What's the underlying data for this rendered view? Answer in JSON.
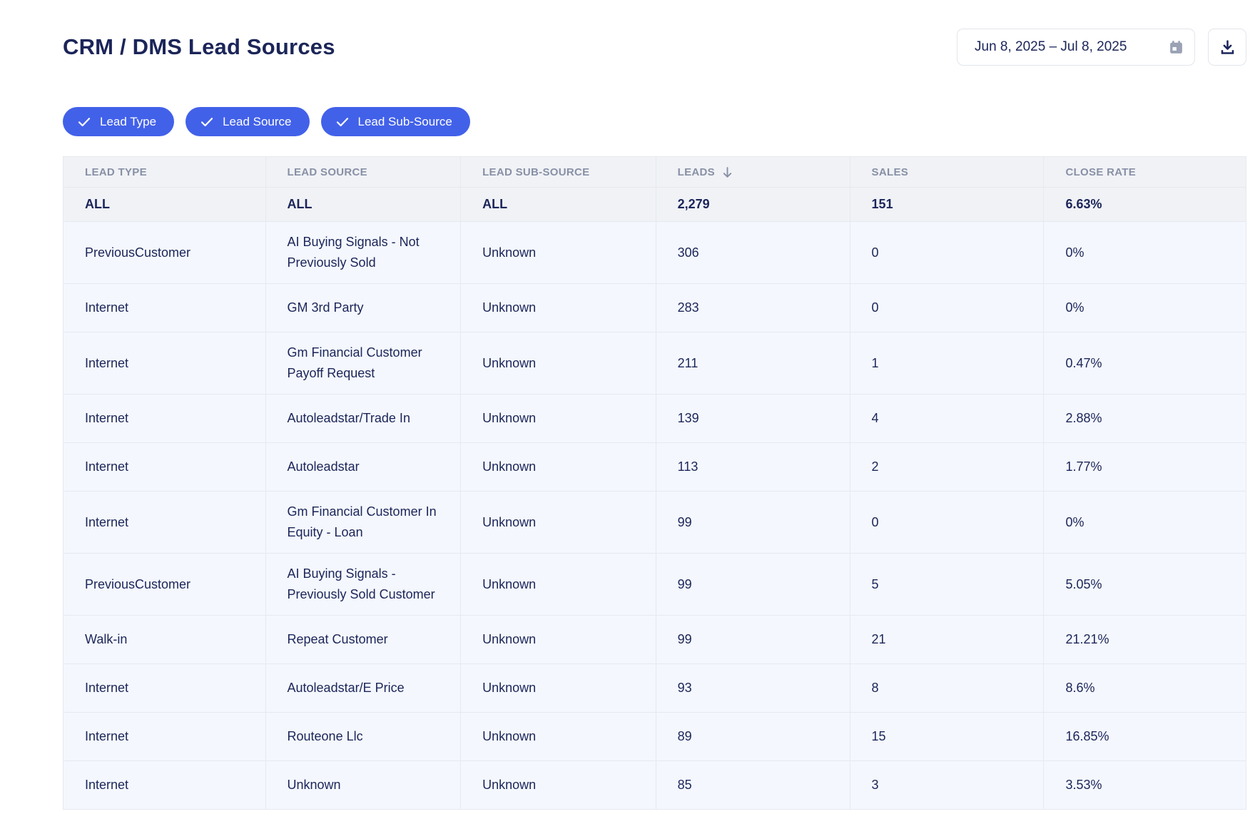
{
  "page": {
    "title": "CRM / DMS Lead Sources"
  },
  "controls": {
    "date_range": "Jun 8, 2025 – Jul 8, 2025",
    "calendar_icon": "calendar-icon",
    "download_icon": "download-icon"
  },
  "filters": [
    {
      "label": "Lead Type",
      "checked": true
    },
    {
      "label": "Lead Source",
      "checked": true
    },
    {
      "label": "Lead Sub-Source",
      "checked": true
    }
  ],
  "table": {
    "columns": [
      "LEAD TYPE",
      "LEAD SOURCE",
      "LEAD SUB-SOURCE",
      "LEADS",
      "SALES",
      "CLOSE RATE"
    ],
    "sort": {
      "column": "LEADS",
      "direction": "desc"
    },
    "totals": {
      "lead_type": "ALL",
      "lead_source": "ALL",
      "lead_sub_source": "ALL",
      "leads": "2,279",
      "sales": "151",
      "close_rate": "6.63%"
    },
    "rows": [
      [
        "PreviousCustomer",
        "AI Buying Signals - Not Previously Sold",
        "Unknown",
        "306",
        "0",
        "0%"
      ],
      [
        "Internet",
        "GM 3rd Party",
        "Unknown",
        "283",
        "0",
        "0%"
      ],
      [
        "Internet",
        "Gm Financial Customer Payoff Request",
        "Unknown",
        "211",
        "1",
        "0.47%"
      ],
      [
        "Internet",
        "Autoleadstar/Trade In",
        "Unknown",
        "139",
        "4",
        "2.88%"
      ],
      [
        "Internet",
        "Autoleadstar",
        "Unknown",
        "113",
        "2",
        "1.77%"
      ],
      [
        "Internet",
        "Gm Financial Customer In Equity - Loan",
        "Unknown",
        "99",
        "0",
        "0%"
      ],
      [
        "PreviousCustomer",
        "AI Buying Signals - Previously Sold Customer",
        "Unknown",
        "99",
        "5",
        "5.05%"
      ],
      [
        "Walk-in",
        "Repeat Customer",
        "Unknown",
        "99",
        "21",
        "21.21%"
      ],
      [
        "Internet",
        "Autoleadstar/E Price",
        "Unknown",
        "93",
        "8",
        "8.6%"
      ],
      [
        "Internet",
        "Routeone Llc",
        "Unknown",
        "89",
        "15",
        "16.85%"
      ],
      [
        "Internet",
        "Unknown",
        "Unknown",
        "85",
        "3",
        "3.53%"
      ]
    ]
  },
  "colors": {
    "navy": "#1B2559",
    "accent": "#4261E9",
    "header-text": "#8890A6",
    "header-bg": "#F0F2F5",
    "totals-bg": "#F0F2F6",
    "row-bg": "#F4F7FD",
    "border": "#E6E9EF",
    "icon-gray": "#9AA2B4"
  }
}
